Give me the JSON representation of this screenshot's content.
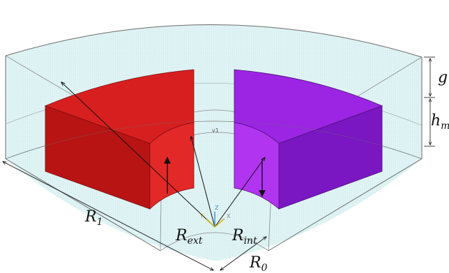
{
  "labels": {
    "g": "g",
    "h_m": {
      "base": "h",
      "sub": "m"
    },
    "R_1": {
      "base": "R",
      "sub": "1"
    },
    "R_ext": {
      "base": "R",
      "sub": "ext"
    },
    "R_int": {
      "base": "R",
      "sub": "int"
    },
    "R_0": {
      "base": "R",
      "sub": "0"
    },
    "v1": "v1"
  },
  "axes": {
    "y": "Y",
    "z": "Z",
    "x": "X"
  },
  "colors": {
    "airgap_fill": "#dff3f4",
    "airgap_grid": "#c3e7e8",
    "outline": "#6a6a6a",
    "magnet_left_top": "#d81f1f",
    "magnet_left_front": "#b81414",
    "magnet_left_inner": "#e32828",
    "magnet_right_top": "#9b25e3",
    "magnet_right_front": "#7a17c2",
    "magnet_right_inner": "#b135f0",
    "axis_x": "#d0b000",
    "axis_y": "#d0b000",
    "axis_z": "#2a8fe0"
  }
}
